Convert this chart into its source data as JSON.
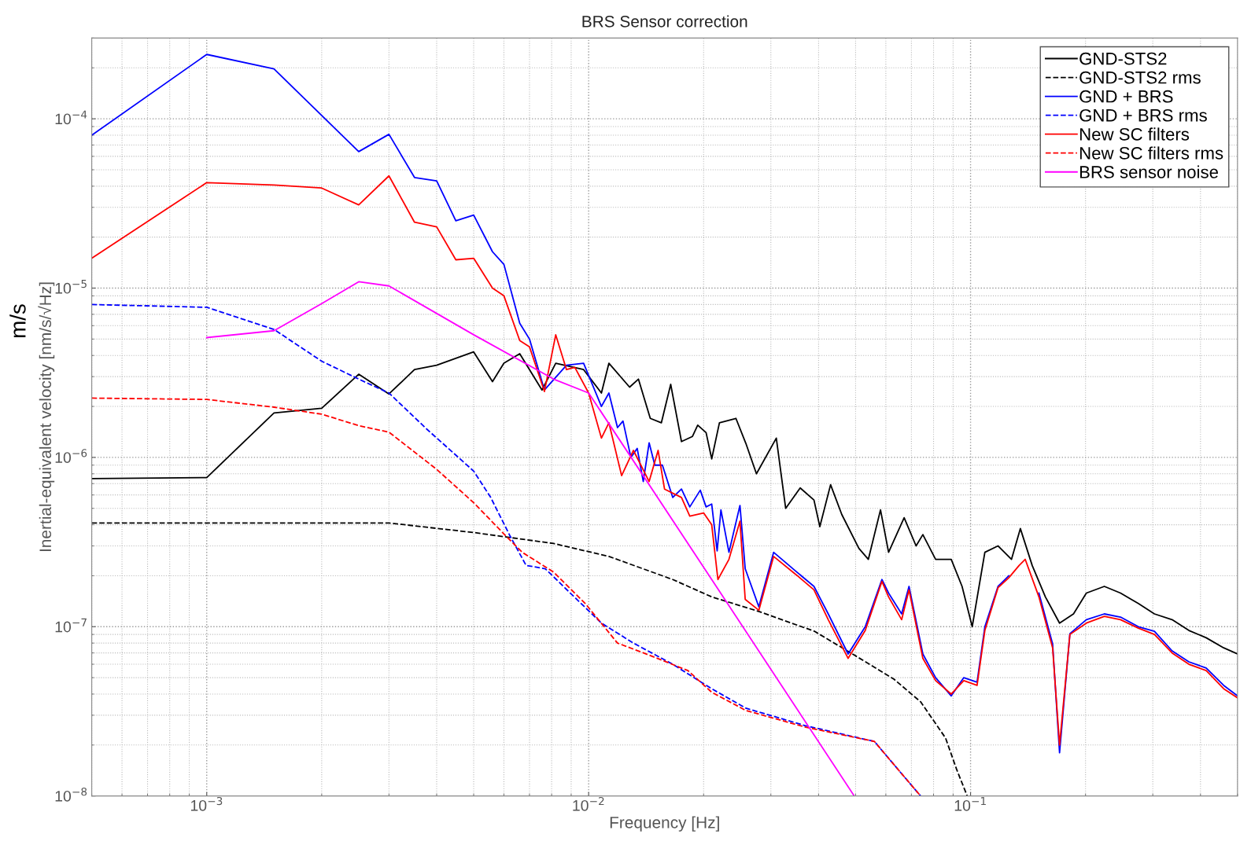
{
  "chart_data": {
    "type": "line",
    "title": "BRS Sensor correction",
    "xlabel": "Frequency [Hz]",
    "ylabel": "Inertial-equivalent velocity [nm/s/√Hz]",
    "annotations": [
      "m/s"
    ],
    "log": "xy",
    "grid": true,
    "legend": "top right",
    "marker": "none",
    "xlim": [
      0.0005,
      0.5
    ],
    "ylim": [
      1e-08,
      0.0003
    ],
    "xticks": [
      {
        "value": 0.001,
        "label": "10$^{−3}$"
      },
      {
        "value": 0.01,
        "label": "10$^{−2}$"
      },
      {
        "value": 0.1,
        "label": "10$^{−1}$"
      }
    ],
    "yticks": [
      {
        "value": 1e-08,
        "label": "10$^{−8}$"
      },
      {
        "value": 1e-07,
        "label": "10$^{−7}$"
      },
      {
        "value": 1e-06,
        "label": "10$^{−6}$"
      },
      {
        "value": 1e-05,
        "label": "10$^{−5}$"
      },
      {
        "value": 0.0001,
        "label": "10$^{−4}$"
      }
    ],
    "series": [
      {
        "name": "GND-STS2",
        "color": "#000000",
        "line_style": "solid",
        "x": [
          0.0005,
          0.001,
          0.0015,
          0.002,
          0.0025,
          0.003,
          0.0035,
          0.004,
          0.005,
          0.0056,
          0.006,
          0.0066,
          0.00755,
          0.0082,
          0.0097,
          0.0108,
          0.0113,
          0.0128,
          0.0135,
          0.0145,
          0.0155,
          0.0164,
          0.0175,
          0.0187,
          0.0193,
          0.0203,
          0.021,
          0.022,
          0.0243,
          0.0258,
          0.0275,
          0.031,
          0.0328,
          0.0358,
          0.0389,
          0.0403,
          0.043,
          0.046,
          0.051,
          0.054,
          0.0581,
          0.061,
          0.067,
          0.072,
          0.075,
          0.081,
          0.089,
          0.095,
          0.101,
          0.109,
          0.118,
          0.128,
          0.135,
          0.145,
          0.157,
          0.171,
          0.186,
          0.201,
          0.224,
          0.247,
          0.275,
          0.303,
          0.337,
          0.373,
          0.414,
          0.46,
          0.5
        ],
        "values": [
          7.5e-07,
          7.6e-07,
          1.83e-06,
          1.95e-06,
          3.1e-06,
          2.37e-06,
          3.3e-06,
          3.5e-06,
          4.2e-06,
          2.8e-06,
          3.6e-06,
          4.1e-06,
          2.5e-06,
          3.6e-06,
          3.3e-06,
          2.4e-06,
          3.6e-06,
          2.6e-06,
          2.9e-06,
          1.7e-06,
          1.6e-06,
          2.7e-06,
          1.24e-06,
          1.33e-06,
          1.55e-06,
          1.4e-06,
          9.8e-07,
          1.6e-06,
          1.7e-06,
          1.21e-06,
          8e-07,
          1.3e-06,
          5e-07,
          6.6e-07,
          5.6e-07,
          3.9e-07,
          6.9e-07,
          4.6e-07,
          2.9e-07,
          2.5e-07,
          4.9e-07,
          2.75e-07,
          4.4e-07,
          3e-07,
          3.5e-07,
          2.5e-07,
          2.5e-07,
          1.73e-07,
          1e-07,
          2.75e-07,
          3e-07,
          2.5e-07,
          3.8e-07,
          2.3e-07,
          1.5e-07,
          1.05e-07,
          1.19e-07,
          1.58e-07,
          1.73e-07,
          1.58e-07,
          1.37e-07,
          1.19e-07,
          1.1e-07,
          9.5e-08,
          8.6e-08,
          7.5e-08,
          6.9e-08
        ]
      },
      {
        "name": "GND-STS2 rms",
        "color": "#000000",
        "line_style": "dashed",
        "x": [
          0.0005,
          0.003,
          0.005,
          0.0081,
          0.0113,
          0.0166,
          0.021,
          0.0279,
          0.039,
          0.0496,
          0.063,
          0.074,
          0.086,
          0.092,
          0.098
        ],
        "values": [
          4.1e-07,
          4.1e-07,
          3.6e-07,
          3.1e-07,
          2.6e-07,
          1.9e-07,
          1.5e-07,
          1.23e-07,
          9.4e-08,
          6.8e-08,
          4.9e-08,
          3.6e-08,
          2.2e-08,
          1.43e-08,
          1e-08
        ]
      },
      {
        "name": "GND + BRS",
        "color": "#0000ff",
        "line_style": "solid",
        "x": [
          0.0005,
          0.001,
          0.0015,
          0.0025,
          0.003,
          0.0035,
          0.004,
          0.00449,
          0.005,
          0.0056,
          0.006,
          0.0066,
          0.007,
          0.00766,
          0.00875,
          0.0097,
          0.0108,
          0.0113,
          0.0119,
          0.0123,
          0.0129,
          0.0134,
          0.0139,
          0.0144,
          0.0149,
          0.0156,
          0.0166,
          0.0175,
          0.0184,
          0.0196,
          0.0203,
          0.021,
          0.0217,
          0.0222,
          0.0233,
          0.0249,
          0.0257,
          0.0279,
          0.0305,
          0.0352,
          0.0389,
          0.0424,
          0.0478,
          0.053,
          0.0586,
          0.061,
          0.066,
          0.069,
          0.075,
          0.081,
          0.089,
          0.096,
          0.104,
          0.109,
          0.118,
          0.126,
          0.134,
          0.139,
          0.151,
          0.164,
          0.171,
          0.182,
          0.201,
          0.224,
          0.247,
          0.275,
          0.303,
          0.337,
          0.373,
          0.414,
          0.46,
          0.5
        ],
        "values": [
          8e-05,
          0.00024,
          0.000197,
          6.4e-05,
          8.1e-05,
          4.5e-05,
          4.3e-05,
          2.5e-05,
          2.7e-05,
          1.64e-05,
          1.38e-05,
          6.2e-06,
          5e-06,
          2.5e-06,
          3.5e-06,
          3.6e-06,
          2e-06,
          2.4e-06,
          1.5e-06,
          1.64e-06,
          1e-06,
          1.13e-06,
          7.2e-07,
          1.22e-06,
          9e-07,
          9e-07,
          5.8e-07,
          6.5e-07,
          5.1e-07,
          6.4e-07,
          5.1e-07,
          5.3e-07,
          2.8e-07,
          4.9e-07,
          2.75e-07,
          5.2e-07,
          2.2e-07,
          1.31e-07,
          2.75e-07,
          2.09e-07,
          1.73e-07,
          1.19e-07,
          6.9e-08,
          1e-07,
          1.9e-07,
          1.58e-07,
          1.19e-07,
          1.73e-07,
          6.9e-08,
          5e-08,
          3.9e-08,
          5e-08,
          4.7e-08,
          1e-07,
          1.73e-07,
          2e-07,
          null,
          null,
          1.58e-07,
          7.9e-08,
          1.8e-08,
          9.1e-08,
          1.1e-07,
          1.19e-07,
          1.14e-07,
          1e-07,
          9.4e-08,
          7.2e-08,
          6.2e-08,
          5.7e-08,
          4.5e-08,
          3.9e-08
        ]
      },
      {
        "name": "GND + BRS rms",
        "color": "#0000ff",
        "line_style": "dashed",
        "x": [
          0.0005,
          0.001,
          0.0015,
          0.002,
          0.0025,
          0.003,
          0.00378,
          0.005,
          0.00554,
          0.00624,
          0.00686,
          0.0077,
          0.0089,
          0.0108,
          0.0131,
          0.0166,
          0.021,
          0.0258,
          0.037,
          0.056,
          0.065,
          0.074
        ],
        "values": [
          8e-06,
          7.7e-06,
          5.7e-06,
          3.7e-06,
          2.9e-06,
          2.4e-06,
          1.46e-06,
          8.3e-07,
          5.8e-07,
          3.4e-07,
          2.3e-07,
          2.2e-07,
          1.6e-07,
          1.05e-07,
          8e-08,
          6e-08,
          4.3e-08,
          3.3e-08,
          2.6e-08,
          2.1e-08,
          1.41e-08,
          1e-08
        ]
      },
      {
        "name": "New SC filters",
        "color": "#ff0000",
        "line_style": "solid",
        "x": [
          0.0005,
          0.001,
          0.0015,
          0.002,
          0.0025,
          0.003,
          0.0035,
          0.004,
          0.00449,
          0.005,
          0.0056,
          0.006,
          0.0066,
          0.007,
          0.00766,
          0.0082,
          0.00875,
          0.0092,
          0.01,
          0.0108,
          0.0113,
          0.0122,
          0.0131,
          0.0144,
          0.0152,
          0.0158,
          0.0175,
          0.0184,
          0.02,
          0.021,
          0.0218,
          0.0233,
          0.0249,
          0.0257,
          0.0279,
          0.0305,
          0.0352,
          0.0389,
          0.0424,
          0.0478,
          0.053,
          0.0586,
          0.061,
          0.066,
          0.069,
          0.075,
          0.081,
          0.089,
          0.096,
          0.104,
          0.109,
          0.118,
          0.126,
          0.134,
          0.139,
          0.151,
          0.164,
          0.171,
          0.182,
          0.201,
          0.224,
          0.247,
          0.275,
          0.303,
          0.337,
          0.373,
          0.414,
          0.46,
          0.5
        ],
        "values": [
          1.5e-05,
          4.2e-05,
          4.06e-05,
          3.9e-05,
          3.1e-05,
          4.6e-05,
          2.45e-05,
          2.3e-05,
          1.47e-05,
          1.5e-05,
          1e-05,
          9e-06,
          4.9e-06,
          4.5e-06,
          2.45e-06,
          5.3e-06,
          3.3e-06,
          3.4e-06,
          2.4e-06,
          1.3e-06,
          1.6e-06,
          7.8e-07,
          1.1e-06,
          7.2e-07,
          1.1e-06,
          6.5e-07,
          5.8e-07,
          4.5e-07,
          4.7e-07,
          4e-07,
          1.9e-07,
          2.5e-07,
          4.2e-07,
          1.45e-07,
          1.25e-07,
          2.6e-07,
          2e-07,
          1.65e-07,
          1.1e-07,
          6.5e-08,
          9.5e-08,
          1.85e-07,
          1.5e-07,
          1.1e-07,
          1.65e-07,
          6.5e-08,
          4.8e-08,
          4e-08,
          4.8e-08,
          4.5e-08,
          9.5e-08,
          1.7e-07,
          1.95e-07,
          2.3e-07,
          2.5e-07,
          1.5e-07,
          7.5e-08,
          2e-08,
          9e-08,
          1.05e-07,
          1.15e-07,
          1.1e-07,
          9.8e-08,
          9e-08,
          7e-08,
          6e-08,
          5.5e-08,
          4.3e-08,
          3.8e-08
        ]
      },
      {
        "name": "New SC filters rms",
        "color": "#ff0000",
        "line_style": "dashed",
        "x": [
          0.0005,
          0.001,
          0.0015,
          0.002,
          0.0025,
          0.003,
          0.004,
          0.005,
          0.0061,
          0.0067,
          0.0081,
          0.0098,
          0.0119,
          0.0144,
          0.0182,
          0.021,
          0.0258,
          0.037,
          0.056,
          0.065,
          0.074
        ],
        "values": [
          2.24e-06,
          2.2e-06,
          1.98e-06,
          1.8e-06,
          1.54e-06,
          1.41e-06,
          8.5e-07,
          5.4e-07,
          3.4e-07,
          2.75e-07,
          2.1e-07,
          1.37e-07,
          8e-08,
          6.8e-08,
          5.5e-08,
          4.1e-08,
          3.2e-08,
          2.55e-08,
          2.1e-08,
          1.41e-08,
          1e-08
        ]
      },
      {
        "name": "BRS sensor noise",
        "color": "#ff00ff",
        "line_style": "solid",
        "x": [
          0.001,
          0.0015,
          0.002,
          0.0025,
          0.003,
          0.005,
          0.0081,
          0.01,
          0.021,
          0.0496
        ],
        "values": [
          5.1e-06,
          5.6e-06,
          8.1e-06,
          1.09e-05,
          1.03e-05,
          5.3e-06,
          2.9e-06,
          2.4e-06,
          1.9e-07,
          1e-08
        ]
      }
    ]
  }
}
